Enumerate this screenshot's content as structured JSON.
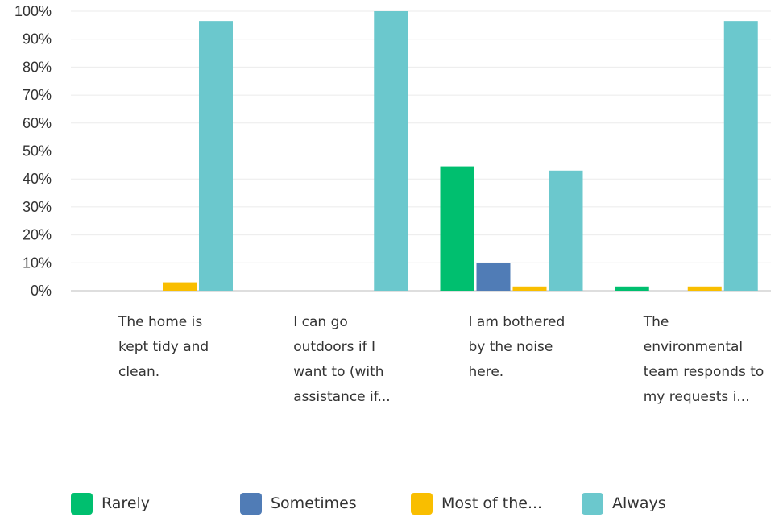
{
  "chart_data": {
    "type": "bar",
    "categories": [
      [
        "The home is",
        "kept tidy and",
        "clean."
      ],
      [
        "I can go",
        "outdoors if I",
        "want to (with",
        "assistance if..."
      ],
      [
        "I am bothered",
        "by the noise",
        "here."
      ],
      [
        "The",
        "environmental",
        "team responds to",
        "my requests i..."
      ]
    ],
    "series": [
      {
        "name": "Rarely",
        "color": "#00bf6f",
        "values": [
          0,
          0,
          44.5,
          1.5
        ]
      },
      {
        "name": "Sometimes",
        "color": "#507cb6",
        "values": [
          0,
          0,
          10,
          0
        ]
      },
      {
        "name": "Most of the...",
        "color": "#f9be00",
        "values": [
          3,
          0,
          1.5,
          1.5
        ]
      },
      {
        "name": "Always",
        "color": "#6bc8cd",
        "values": [
          96.5,
          100,
          43,
          96.5
        ]
      }
    ],
    "ylim": [
      0,
      100
    ],
    "yticks": [
      "0%",
      "10%",
      "20%",
      "30%",
      "40%",
      "50%",
      "60%",
      "70%",
      "80%",
      "90%",
      "100%"
    ],
    "grid": true,
    "legend_position": "bottom"
  }
}
